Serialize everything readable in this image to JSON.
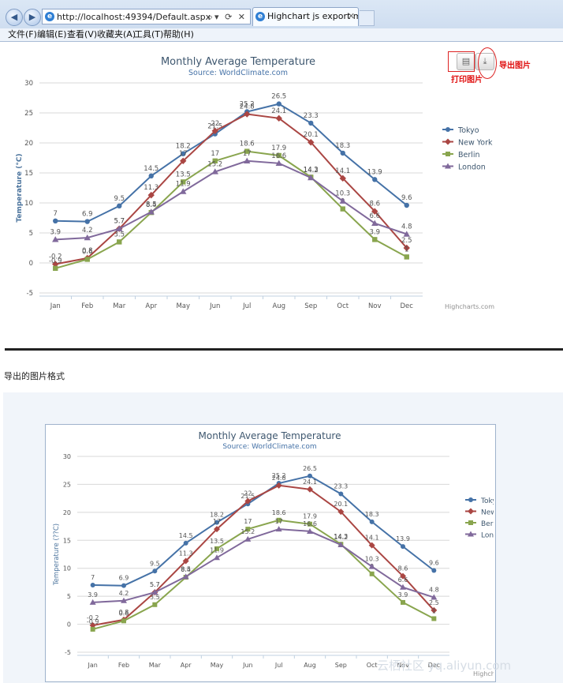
{
  "browser": {
    "url": "http://localhost:49394/Default.aspx",
    "tab_title": "Highchart js export mod...",
    "menu": [
      "文件(F)",
      "编辑(E)",
      "查看(V)",
      "收藏夹(A)",
      "工具(T)",
      "帮助(H)"
    ]
  },
  "annotations": {
    "print_label": "打印图片",
    "export_label": "导出图片",
    "section_caption": "导出的图片格式"
  },
  "watermark": "云栖社区 yq.aliyun.com",
  "charts": [
    {
      "ylabel": "Temperature (°C)",
      "credits": "Highcharts.com"
    },
    {
      "ylabel": "Temperature (??C)",
      "credits": "Highcharts.com"
    }
  ],
  "chart_data": {
    "type": "line",
    "title": "Monthly Average Temperature",
    "subtitle": "Source: WorldClimate.com",
    "categories": [
      "Jan",
      "Feb",
      "Mar",
      "Apr",
      "May",
      "Jun",
      "Jul",
      "Aug",
      "Sep",
      "Oct",
      "Nov",
      "Dec"
    ],
    "ylim": [
      -5,
      30
    ],
    "yticks": [
      -5,
      0,
      5,
      10,
      15,
      20,
      25,
      30
    ],
    "grid": true,
    "legend": "right",
    "series": [
      {
        "name": "Tokyo",
        "color": "#4572a7",
        "marker": "circle",
        "values": [
          7.0,
          6.9,
          9.5,
          14.5,
          18.2,
          21.5,
          25.2,
          26.5,
          23.3,
          18.3,
          13.9,
          9.6
        ]
      },
      {
        "name": "New York",
        "color": "#aa4643",
        "marker": "diamond",
        "values": [
          -0.2,
          0.8,
          5.7,
          11.3,
          17.0,
          22.0,
          24.8,
          24.1,
          20.1,
          14.1,
          8.6,
          2.5
        ]
      },
      {
        "name": "Berlin",
        "color": "#89a54e",
        "marker": "square",
        "values": [
          -0.9,
          0.6,
          3.5,
          8.4,
          13.5,
          17.0,
          18.6,
          17.9,
          14.3,
          9.0,
          3.9,
          1.0
        ]
      },
      {
        "name": "London",
        "color": "#80699b",
        "marker": "triangle",
        "values": [
          3.9,
          4.2,
          5.7,
          8.5,
          11.9,
          15.2,
          17.0,
          16.6,
          14.2,
          10.3,
          6.6,
          4.8
        ]
      }
    ]
  }
}
